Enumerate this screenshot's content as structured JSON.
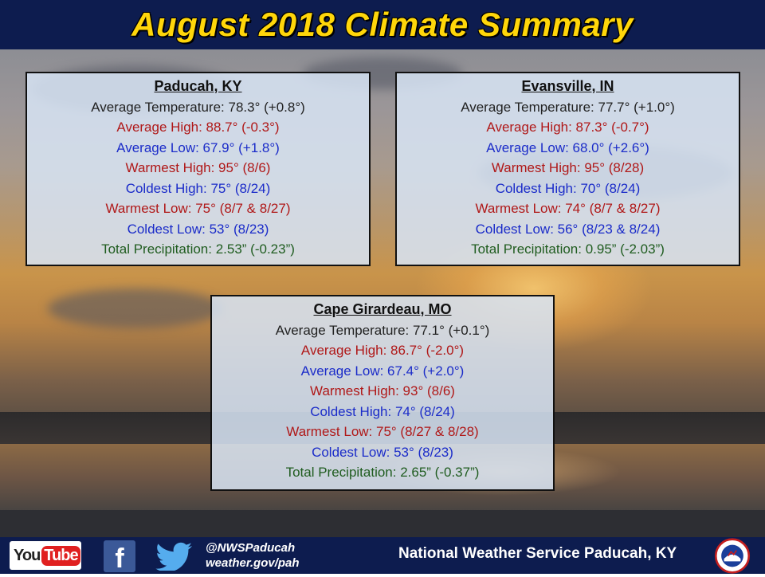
{
  "header": {
    "title": "August 2018 Climate Summary"
  },
  "stations": [
    {
      "name": "Paducah, KY",
      "lines": [
        "Average Temperature: 78.3° (+0.8°)",
        "Average High: 88.7° (-0.3°)",
        "Average Low: 67.9° (+1.8°)",
        "Warmest High: 95° (8/6)",
        "Coldest High: 75° (8/24)",
        "Warmest Low: 75° (8/7 & 8/27)",
        "Coldest Low: 53° (8/23)",
        "Total Precipitation: 2.53” (-0.23”)"
      ]
    },
    {
      "name": "Evansville, IN",
      "lines": [
        "Average Temperature: 77.7° (+1.0°)",
        "Average High: 87.3° (-0.7°)",
        "Average Low: 68.0° (+2.6°)",
        "Warmest High: 95° (8/28)",
        "Coldest High: 70° (8/24)",
        "Warmest Low: 74° (8/7 & 8/27)",
        "Coldest Low: 56° (8/23 & 8/24)",
        "Total Precipitation: 0.95” (-2.03”)"
      ]
    },
    {
      "name": "Cape Girardeau, MO",
      "lines": [
        "Average Temperature: 77.1° (+0.1°)",
        "Average High: 86.7° (-2.0°)",
        "Average Low: 67.4° (+2.0°)",
        "Warmest High: 93° (8/6)",
        "Coldest High: 74° (8/24)",
        "Warmest Low: 75° (8/27 & 8/28)",
        "Coldest Low: 53° (8/23)",
        "Total Precipitation: 2.65” (-0.37”)"
      ]
    }
  ],
  "colors": {
    "header_bg": "#0d1c4f",
    "title": "#ffd60a",
    "temperature": "#222222",
    "high": "#b01818",
    "low": "#1b2cc9",
    "precip": "#1f5c1f"
  },
  "footer": {
    "youtube_you": "You",
    "youtube_tube": "Tube",
    "facebook_letter": "f",
    "handle": "@NWSPaducah",
    "website": "weather.gov/pah",
    "office": "National Weather Service Paducah, KY",
    "icons": [
      "youtube-logo",
      "facebook-icon",
      "twitter-bird-icon",
      "nws-logo"
    ]
  }
}
